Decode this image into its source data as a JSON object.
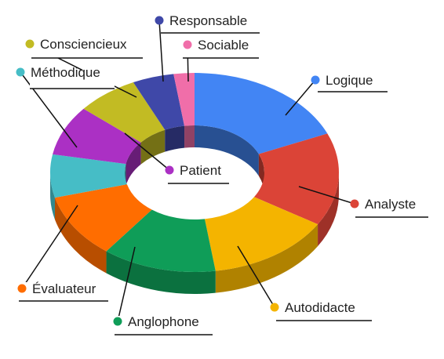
{
  "chart_data": {
    "type": "pie",
    "style": "3d-donut",
    "legend": "none",
    "labels_position": "outside-with-leader-lines",
    "categories": [
      "Logique",
      "Analyste",
      "Autodidacte",
      "Anglophone",
      "Évaluateur",
      "Méthodique",
      "Patient",
      "Consciencieux",
      "Responsable",
      "Sociable"
    ],
    "values": [
      16,
      13,
      12,
      11,
      9,
      6,
      7,
      6,
      4,
      2
    ],
    "colors": [
      "#4285f4",
      "#db4437",
      "#f4b400",
      "#0f9d58",
      "#ff6d00",
      "#46bdc6",
      "#ab30c4",
      "#c2bb23",
      "#3f48a8",
      "#f06ea9"
    ]
  }
}
